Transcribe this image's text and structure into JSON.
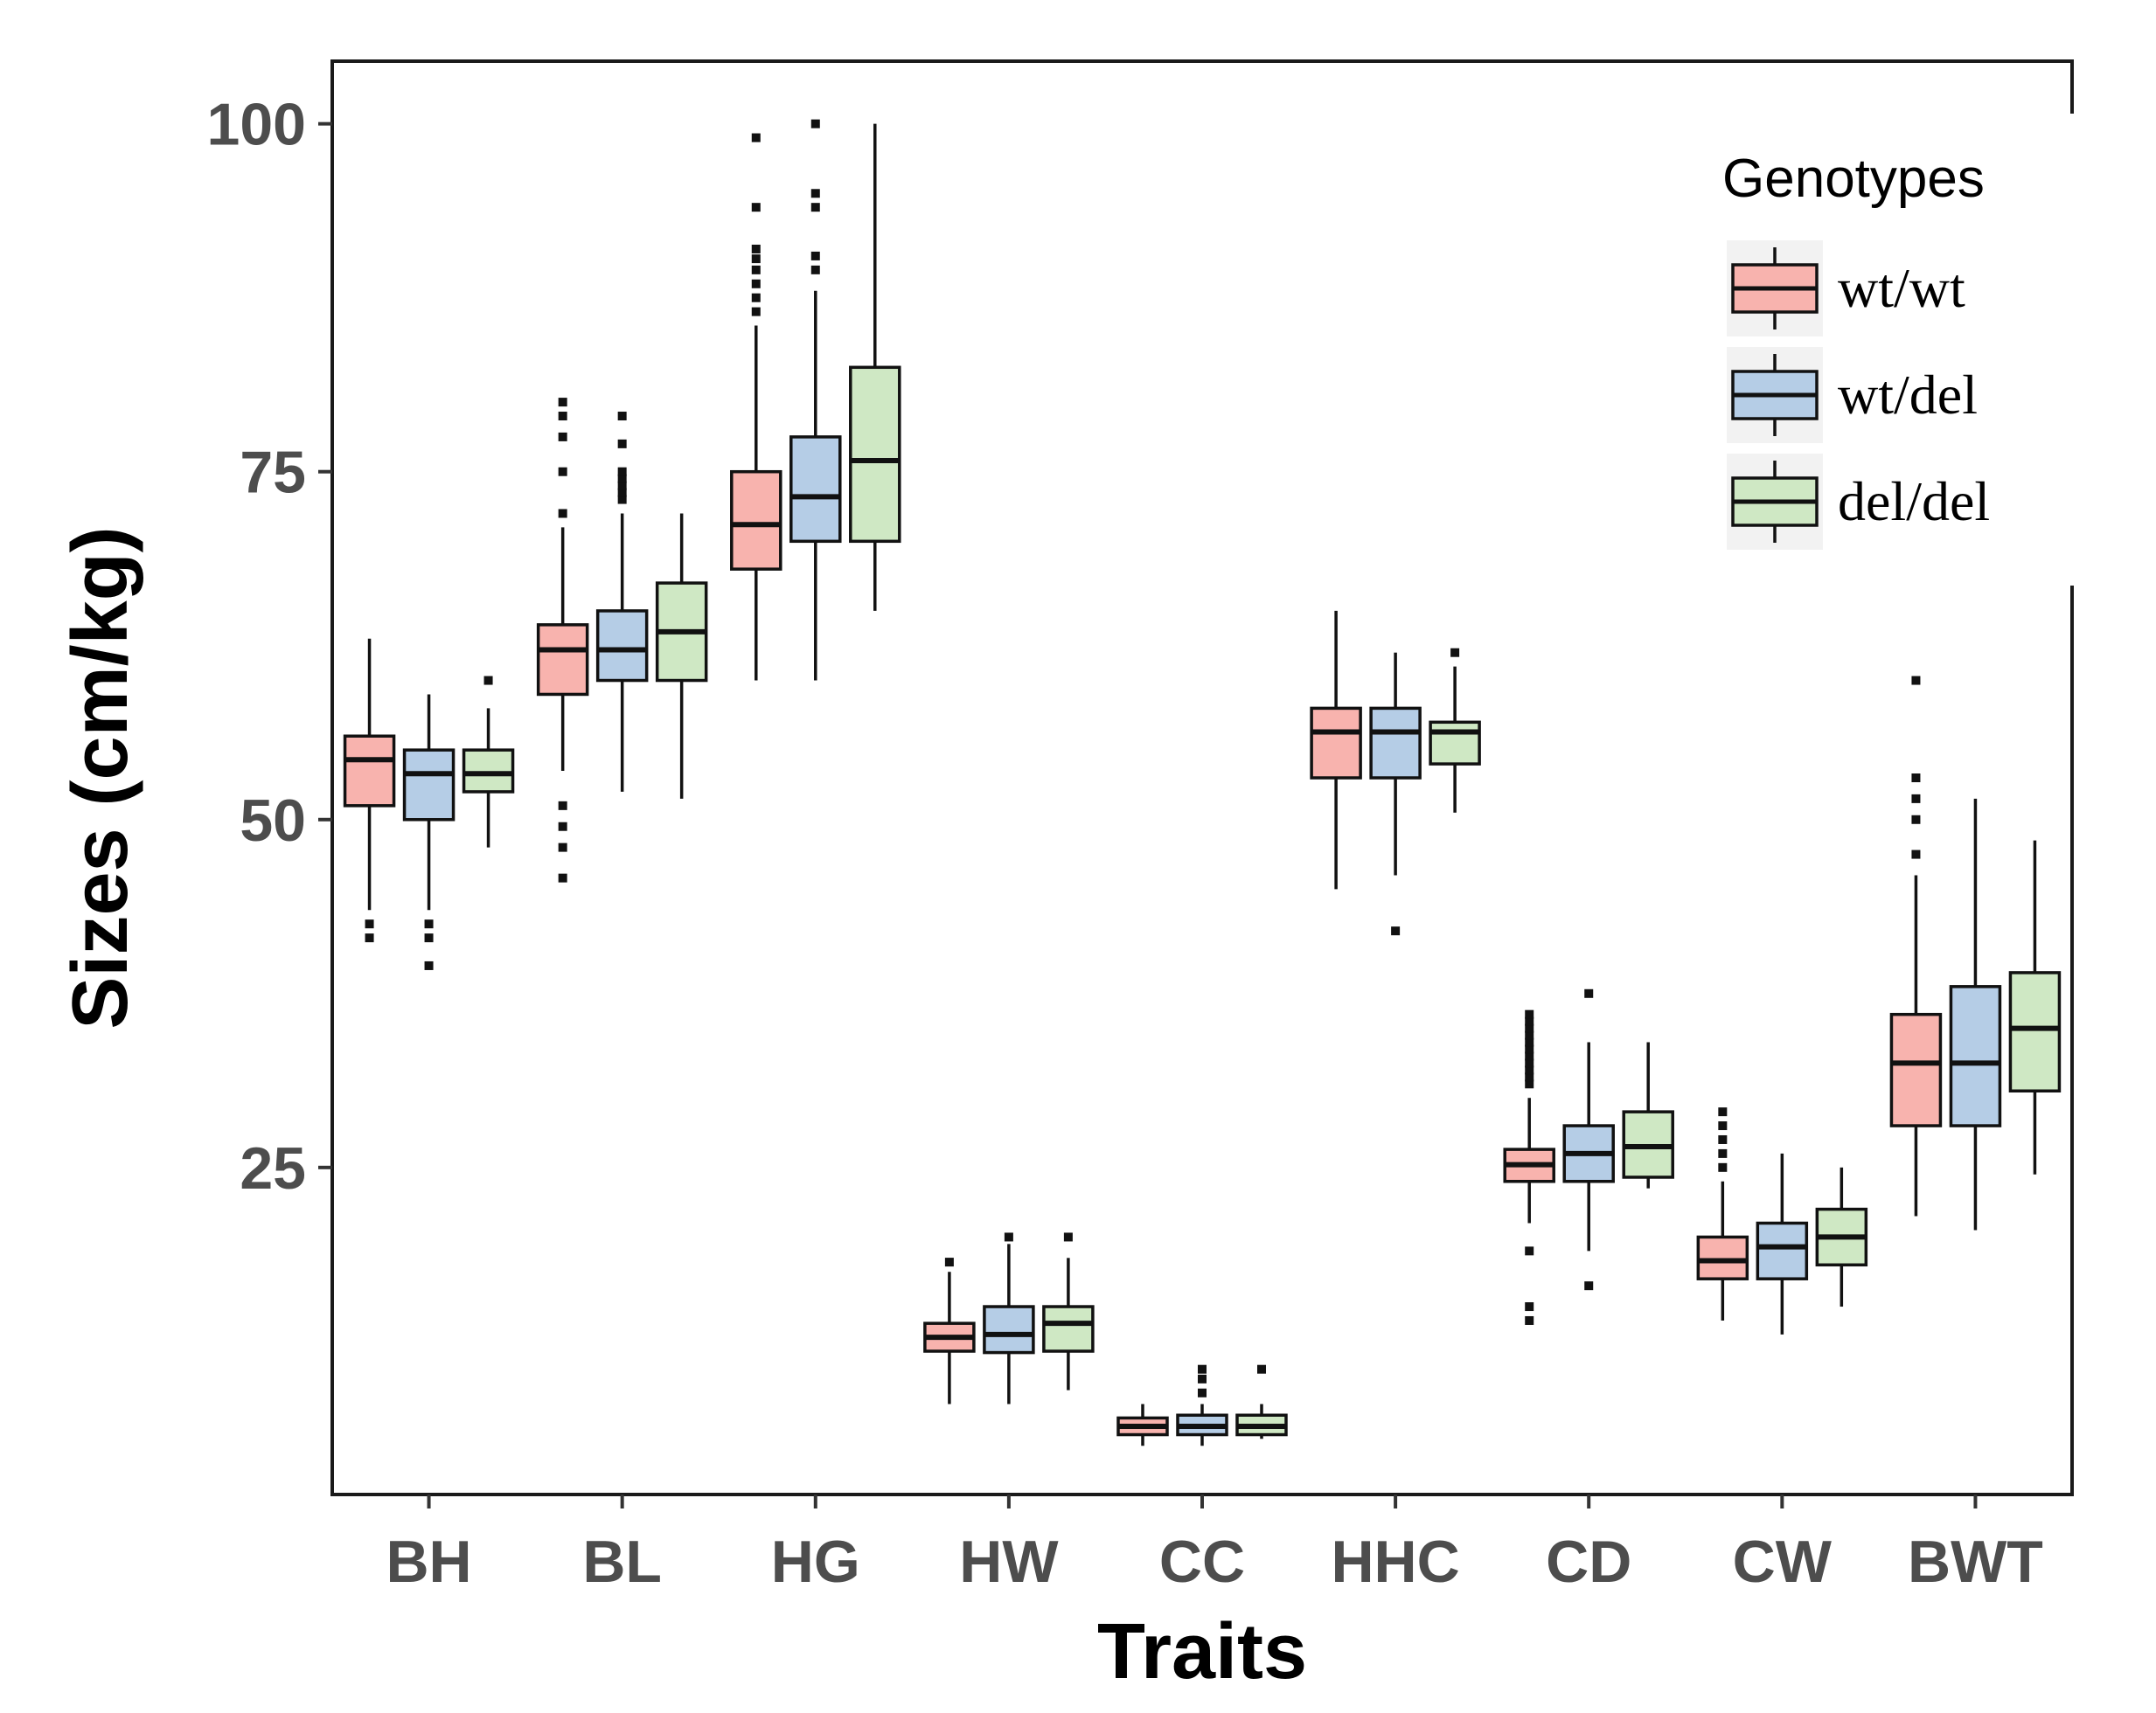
{
  "chart_data": {
    "type": "boxplot",
    "title": "",
    "xlabel": "Traits",
    "ylabel": "Sizes (cm/kg)",
    "ylim": [
      1.5,
      104.5
    ],
    "yticks": [
      25,
      50,
      75,
      100
    ],
    "ytick_labels": [
      "25",
      "50",
      "75",
      "100"
    ],
    "grid": false,
    "legend": {
      "title": "Genotypes",
      "position": "top-right"
    },
    "colors": {
      "wt/wt": "#f8b3ae",
      "wt/del": "#b5cde6",
      "del/del": "#cfe8c4",
      "outline": "#111111"
    },
    "categories": [
      "BH",
      "BL",
      "HG",
      "HW",
      "CC",
      "HHC",
      "CD",
      "CW",
      "BWT"
    ],
    "series": [
      {
        "name": "wt/wt",
        "boxes": [
          {
            "whislo": 43.5,
            "q1": 51.0,
            "med": 54.3,
            "q3": 56.0,
            "whishi": 63.0,
            "fliers": [
              41.5,
              42.5
            ]
          },
          {
            "whislo": 53.5,
            "q1": 59.0,
            "med": 62.2,
            "q3": 64.0,
            "whishi": 71.0,
            "fliers": [
              45.8,
              48.0,
              49.5,
              51.0,
              72.0,
              75.0,
              77.5,
              79.0,
              80.0
            ]
          },
          {
            "whislo": 60.0,
            "q1": 68.0,
            "med": 71.2,
            "q3": 75.0,
            "whishi": 85.5,
            "fliers": [
              86.5,
              87.5,
              88.5,
              89.5,
              90.3,
              91.0,
              94.0,
              99.0
            ]
          },
          {
            "whislo": 8.0,
            "q1": 11.8,
            "med": 12.8,
            "q3": 13.8,
            "whishi": 17.5,
            "fliers": [
              18.2
            ]
          },
          {
            "whislo": 5.0,
            "q1": 5.8,
            "med": 6.4,
            "q3": 7.0,
            "whishi": 8.0,
            "fliers": []
          },
          {
            "whislo": 45.0,
            "q1": 53.0,
            "med": 56.3,
            "q3": 58.0,
            "whishi": 65.0,
            "fliers": []
          },
          {
            "whislo": 21.0,
            "q1": 24.0,
            "med": 25.2,
            "q3": 26.3,
            "whishi": 30.0,
            "fliers": [
              14.0,
              15.0,
              19.0,
              31.0,
              31.5,
              32.0,
              32.5,
              33.0,
              33.5,
              34.0,
              34.5,
              35.0,
              35.5,
              36.0
            ]
          },
          {
            "whislo": 14.0,
            "q1": 17.0,
            "med": 18.3,
            "q3": 20.0,
            "whishi": 24.0,
            "fliers": [
              25.0,
              26.0,
              27.0,
              28.0,
              29.0
            ]
          },
          {
            "whislo": 21.5,
            "q1": 28.0,
            "med": 32.5,
            "q3": 36.0,
            "whishi": 46.0,
            "fliers": [
              47.5,
              50.0,
              51.5,
              53.0,
              60.0
            ]
          }
        ]
      },
      {
        "name": "wt/del",
        "boxes": [
          {
            "whislo": 43.5,
            "q1": 50.0,
            "med": 53.3,
            "q3": 55.0,
            "whishi": 59.0,
            "fliers": [
              39.5,
              41.5,
              42.5
            ]
          },
          {
            "whislo": 52.0,
            "q1": 60.0,
            "med": 62.2,
            "q3": 65.0,
            "whishi": 72.0,
            "fliers": [
              73.0,
              73.5,
              74.0,
              74.5,
              75.0,
              77.0,
              79.0
            ]
          },
          {
            "whislo": 60.0,
            "q1": 70.0,
            "med": 73.2,
            "q3": 77.5,
            "whishi": 88.0,
            "fliers": [
              89.5,
              90.5,
              94.0,
              95.0,
              100.0
            ]
          },
          {
            "whislo": 8.0,
            "q1": 11.7,
            "med": 13.0,
            "q3": 15.0,
            "whishi": 19.5,
            "fliers": [
              20.0
            ]
          },
          {
            "whislo": 5.0,
            "q1": 5.8,
            "med": 6.4,
            "q3": 7.2,
            "whishi": 8.0,
            "fliers": [
              8.8,
              9.8,
              10.5
            ]
          },
          {
            "whislo": 46.0,
            "q1": 53.0,
            "med": 56.3,
            "q3": 58.0,
            "whishi": 62.0,
            "fliers": [
              42.0
            ]
          },
          {
            "whislo": 19.0,
            "q1": 24.0,
            "med": 26.0,
            "q3": 28.0,
            "whishi": 34.0,
            "fliers": [
              16.5,
              37.5
            ]
          },
          {
            "whislo": 13.0,
            "q1": 17.0,
            "med": 19.3,
            "q3": 21.0,
            "whishi": 26.0,
            "fliers": []
          },
          {
            "whislo": 20.5,
            "q1": 28.0,
            "med": 32.5,
            "q3": 38.0,
            "whishi": 51.5,
            "fliers": []
          }
        ]
      },
      {
        "name": "del/del",
        "boxes": [
          {
            "whislo": 48.0,
            "q1": 52.0,
            "med": 53.3,
            "q3": 55.0,
            "whishi": 58.0,
            "fliers": [
              60.0
            ]
          },
          {
            "whislo": 51.5,
            "q1": 60.0,
            "med": 63.5,
            "q3": 67.0,
            "whishi": 72.0,
            "fliers": []
          },
          {
            "whislo": 65.0,
            "q1": 70.0,
            "med": 75.8,
            "q3": 82.5,
            "whishi": 100.0,
            "fliers": []
          },
          {
            "whislo": 9.0,
            "q1": 11.8,
            "med": 13.8,
            "q3": 15.0,
            "whishi": 18.5,
            "fliers": [
              20.0
            ]
          },
          {
            "whislo": 5.5,
            "q1": 5.8,
            "med": 6.4,
            "q3": 7.2,
            "whishi": 8.0,
            "fliers": [
              10.5
            ]
          },
          {
            "whislo": 50.5,
            "q1": 54.0,
            "med": 56.3,
            "q3": 57.0,
            "whishi": 61.0,
            "fliers": [
              62.0
            ]
          },
          {
            "whislo": 23.5,
            "q1": 24.3,
            "med": 26.5,
            "q3": 29.0,
            "whishi": 34.0,
            "fliers": []
          },
          {
            "whislo": 15.0,
            "q1": 18.0,
            "med": 20.0,
            "q3": 22.0,
            "whishi": 25.0,
            "fliers": []
          },
          {
            "whislo": 24.5,
            "q1": 30.5,
            "med": 35.0,
            "q3": 39.0,
            "whishi": 48.5,
            "fliers": []
          }
        ]
      }
    ]
  }
}
